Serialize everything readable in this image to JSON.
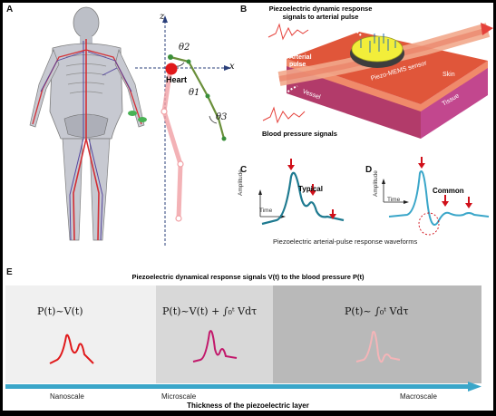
{
  "panel_a": {
    "label": "A",
    "axis_z": "z",
    "axis_x": "x",
    "theta1": "θ1",
    "theta2": "θ2",
    "theta3": "θ3",
    "heart_label": "Heart"
  },
  "panel_b": {
    "label": "B",
    "top_caption": "Piezoelectric dynamic response signals to arterial pulse",
    "arterial_pulse": "Arterial pulse",
    "vessel": "Vessel",
    "sensor": "Piezo-MEMS sensor",
    "skin": "Skin",
    "tissue": "Tissue",
    "bp_signals": "Blood pressure signals"
  },
  "panel_c": {
    "label": "C",
    "title": "Typical",
    "ylabel": "Amplitude",
    "xlabel": "Time"
  },
  "panel_d": {
    "label": "D",
    "title": "Common",
    "ylabel": "Amplitude",
    "xlabel": "Time"
  },
  "cd_caption": "Piezoelectric arterial-pulse response waveforms",
  "panel_e": {
    "label": "E",
    "title": "Piezoelectric dynamical response signals V(t) to the blood pressure P(t)",
    "sections": [
      {
        "formula": "P(t)~V(t)",
        "scale": "Nanoscale",
        "bg": "#f0f0f0",
        "wave_color": "#e0191b"
      },
      {
        "formula": "P(t)~V(t) + ∫₀ᵗ Vdτ",
        "scale": "Microscale",
        "bg": "#d8d8d8",
        "wave_color": "#c2186b"
      },
      {
        "formula": "P(t)~ ∫₀ᵗ Vdτ",
        "scale": "Macroscale",
        "bg": "#b9b9b9",
        "wave_color": "#f4b5b8"
      }
    ],
    "axis_label": "Thickness of the piezoelectric layer"
  },
  "colors": {
    "teal": "#1e7a90",
    "arrow_red": "#d0101a",
    "axis_blue": "#3aa6c9"
  }
}
